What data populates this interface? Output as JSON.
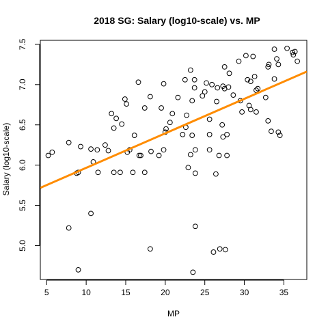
{
  "chart_data": {
    "type": "scatter",
    "title": "2018 SG: Salary (log10-scale) vs. MP",
    "xlabel": "MP",
    "ylabel": "Salary (log10-scale)",
    "xlim": [
      4.2,
      37.9
    ],
    "ylim": [
      4.58,
      7.55
    ],
    "xticks": [
      5,
      10,
      15,
      20,
      25,
      30,
      35
    ],
    "yticks": [
      5.0,
      5.5,
      6.0,
      6.5,
      7.0,
      7.5
    ],
    "ytick_labels": [
      "5.0",
      "5.5",
      "6.0",
      "6.5",
      "7.0",
      "7.5"
    ],
    "grid": false,
    "point_style": "open-circle",
    "fit_line": {
      "intercept": 5.538,
      "slope": 0.04285,
      "color": "#ff8c00"
    },
    "points": [
      {
        "x": 5.2,
        "y": 6.12
      },
      {
        "x": 5.7,
        "y": 6.16
      },
      {
        "x": 7.8,
        "y": 6.28
      },
      {
        "x": 7.8,
        "y": 5.22
      },
      {
        "x": 8.8,
        "y": 5.9
      },
      {
        "x": 9.0,
        "y": 5.91
      },
      {
        "x": 9.0,
        "y": 4.7
      },
      {
        "x": 9.3,
        "y": 6.23
      },
      {
        "x": 10.6,
        "y": 6.2
      },
      {
        "x": 10.6,
        "y": 5.4
      },
      {
        "x": 10.9,
        "y": 6.04
      },
      {
        "x": 11.4,
        "y": 6.19
      },
      {
        "x": 11.5,
        "y": 5.91
      },
      {
        "x": 12.4,
        "y": 6.25
      },
      {
        "x": 12.8,
        "y": 6.18
      },
      {
        "x": 13.2,
        "y": 6.64
      },
      {
        "x": 13.5,
        "y": 6.46
      },
      {
        "x": 13.5,
        "y": 5.91
      },
      {
        "x": 13.8,
        "y": 6.58
      },
      {
        "x": 14.3,
        "y": 5.91
      },
      {
        "x": 14.5,
        "y": 6.51
      },
      {
        "x": 14.9,
        "y": 6.82
      },
      {
        "x": 15.1,
        "y": 6.76
      },
      {
        "x": 15.2,
        "y": 6.16
      },
      {
        "x": 15.5,
        "y": 6.19
      },
      {
        "x": 15.9,
        "y": 5.91
      },
      {
        "x": 16.1,
        "y": 6.37
      },
      {
        "x": 16.6,
        "y": 7.03
      },
      {
        "x": 16.7,
        "y": 6.12
      },
      {
        "x": 16.9,
        "y": 6.12
      },
      {
        "x": 17.4,
        "y": 5.91
      },
      {
        "x": 17.4,
        "y": 6.71
      },
      {
        "x": 18.1,
        "y": 6.85
      },
      {
        "x": 18.1,
        "y": 4.96
      },
      {
        "x": 18.2,
        "y": 6.17
      },
      {
        "x": 19.2,
        "y": 6.12
      },
      {
        "x": 19.5,
        "y": 6.71
      },
      {
        "x": 19.8,
        "y": 7.01
      },
      {
        "x": 19.8,
        "y": 6.19
      },
      {
        "x": 20.0,
        "y": 6.41
      },
      {
        "x": 20.1,
        "y": 6.45
      },
      {
        "x": 20.6,
        "y": 6.53
      },
      {
        "x": 20.9,
        "y": 6.64
      },
      {
        "x": 21.6,
        "y": 6.84
      },
      {
        "x": 22.2,
        "y": 6.38
      },
      {
        "x": 22.5,
        "y": 7.06
      },
      {
        "x": 22.6,
        "y": 6.47
      },
      {
        "x": 22.7,
        "y": 6.62
      },
      {
        "x": 22.9,
        "y": 5.97
      },
      {
        "x": 23.2,
        "y": 7.18
      },
      {
        "x": 23.2,
        "y": 6.13
      },
      {
        "x": 23.4,
        "y": 6.37
      },
      {
        "x": 23.4,
        "y": 6.8
      },
      {
        "x": 23.5,
        "y": 4.67
      },
      {
        "x": 23.7,
        "y": 7.06
      },
      {
        "x": 23.7,
        "y": 6.96
      },
      {
        "x": 23.8,
        "y": 6.19
      },
      {
        "x": 23.8,
        "y": 5.9
      },
      {
        "x": 23.8,
        "y": 5.24
      },
      {
        "x": 24.7,
        "y": 6.86
      },
      {
        "x": 25.0,
        "y": 6.91
      },
      {
        "x": 25.2,
        "y": 7.02
      },
      {
        "x": 25.6,
        "y": 6.57
      },
      {
        "x": 25.6,
        "y": 6.38
      },
      {
        "x": 25.6,
        "y": 6.19
      },
      {
        "x": 25.9,
        "y": 7.0
      },
      {
        "x": 26.1,
        "y": 4.92
      },
      {
        "x": 26.4,
        "y": 5.89
      },
      {
        "x": 26.5,
        "y": 6.79
      },
      {
        "x": 26.6,
        "y": 6.96
      },
      {
        "x": 26.8,
        "y": 6.12
      },
      {
        "x": 26.9,
        "y": 4.96
      },
      {
        "x": 27.2,
        "y": 6.5
      },
      {
        "x": 27.3,
        "y": 6.35
      },
      {
        "x": 27.3,
        "y": 6.98
      },
      {
        "x": 27.5,
        "y": 6.95
      },
      {
        "x": 27.5,
        "y": 7.22
      },
      {
        "x": 27.6,
        "y": 4.95
      },
      {
        "x": 27.8,
        "y": 6.38
      },
      {
        "x": 27.8,
        "y": 6.12
      },
      {
        "x": 28.0,
        "y": 6.97
      },
      {
        "x": 28.1,
        "y": 7.14
      },
      {
        "x": 28.6,
        "y": 6.87
      },
      {
        "x": 29.3,
        "y": 7.29
      },
      {
        "x": 29.5,
        "y": 6.8
      },
      {
        "x": 29.7,
        "y": 6.66
      },
      {
        "x": 30.2,
        "y": 7.36
      },
      {
        "x": 30.4,
        "y": 7.06
      },
      {
        "x": 30.6,
        "y": 6.74
      },
      {
        "x": 30.8,
        "y": 6.69
      },
      {
        "x": 30.8,
        "y": 7.04
      },
      {
        "x": 31.1,
        "y": 7.35
      },
      {
        "x": 31.3,
        "y": 7.1
      },
      {
        "x": 31.5,
        "y": 6.66
      },
      {
        "x": 31.5,
        "y": 6.93
      },
      {
        "x": 31.7,
        "y": 6.95
      },
      {
        "x": 32.7,
        "y": 6.84
      },
      {
        "x": 33.0,
        "y": 7.22
      },
      {
        "x": 33.0,
        "y": 6.55
      },
      {
        "x": 33.1,
        "y": 7.25
      },
      {
        "x": 33.4,
        "y": 6.42
      },
      {
        "x": 33.8,
        "y": 7.07
      },
      {
        "x": 33.8,
        "y": 7.44
      },
      {
        "x": 34.1,
        "y": 7.32
      },
      {
        "x": 34.3,
        "y": 7.25
      },
      {
        "x": 34.3,
        "y": 6.41
      },
      {
        "x": 34.5,
        "y": 6.37
      },
      {
        "x": 35.4,
        "y": 7.45
      },
      {
        "x": 36.1,
        "y": 7.4
      },
      {
        "x": 36.2,
        "y": 7.37
      },
      {
        "x": 36.4,
        "y": 7.41
      },
      {
        "x": 36.7,
        "y": 7.29
      }
    ]
  }
}
